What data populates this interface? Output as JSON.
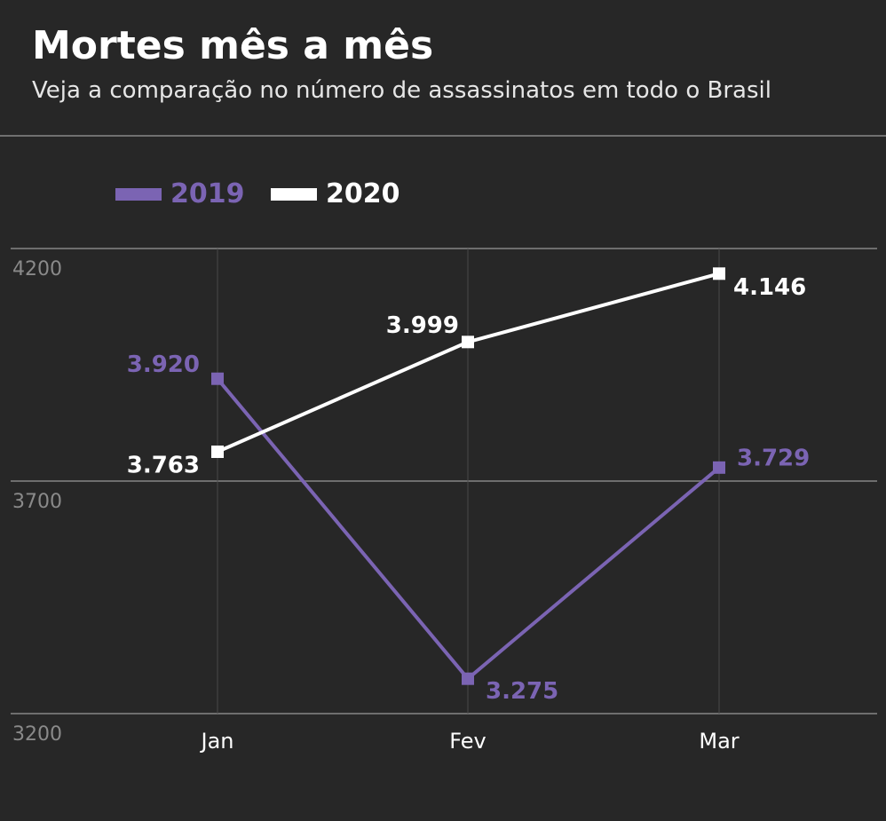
{
  "chart_data": {
    "type": "line",
    "title": "Mortes mês a mês",
    "subtitle": "Veja a comparação no número de assassinatos em todo o Brasil",
    "categories": [
      "Jan",
      "Fev",
      "Mar"
    ],
    "series": [
      {
        "name": "2019",
        "color": "#7b64b3",
        "values": [
          3920,
          3275,
          3729
        ],
        "value_labels": [
          "3.920",
          "3.275",
          "3.729"
        ]
      },
      {
        "name": "2020",
        "color": "#ffffff",
        "values": [
          3763,
          3999,
          4146
        ],
        "value_labels": [
          "3.763",
          "3.999",
          "4.146"
        ]
      }
    ],
    "ylim": [
      3200,
      4200
    ],
    "yticks": [
      3200,
      3700,
      4200
    ],
    "grid": true
  }
}
